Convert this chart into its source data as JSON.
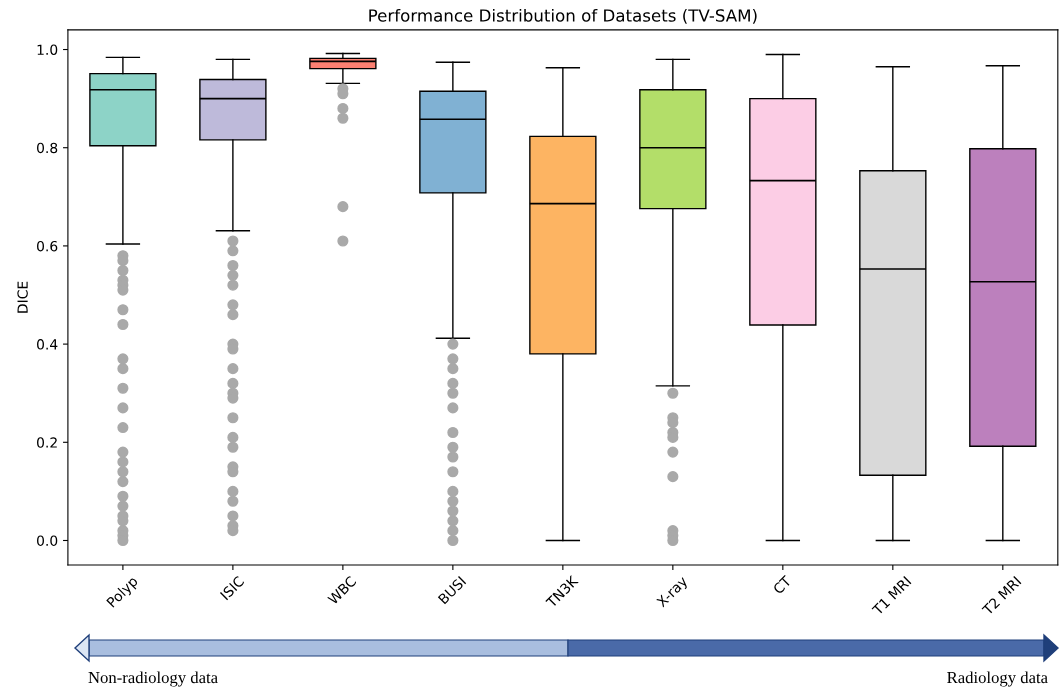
{
  "chart_data": {
    "type": "box",
    "title": "Performance Distribution of Datasets (TV-SAM)",
    "ylabel": "DICE",
    "categories": [
      "Polyp",
      "ISIC",
      "WBC",
      "BUSI",
      "TN3K",
      "X-ray",
      "CT",
      "T1 MRI",
      "T2 MRI"
    ],
    "colors": [
      "#8dd3c7",
      "#bebada",
      "#fb8072",
      "#80b1d3",
      "#fdb462",
      "#b3de69",
      "#fccde5",
      "#d9d9d9",
      "#bc80bd"
    ],
    "boxes": [
      {
        "low": 0.604,
        "q1": 0.804,
        "median": 0.918,
        "q3": 0.951,
        "high": 0.984,
        "outliers": [
          0.58,
          0.57,
          0.55,
          0.53,
          0.52,
          0.51,
          0.47,
          0.44,
          0.37,
          0.35,
          0.31,
          0.27,
          0.23,
          0.18,
          0.16,
          0.14,
          0.12,
          0.09,
          0.07,
          0.05,
          0.04,
          0.02,
          0.01,
          0.0
        ]
      },
      {
        "low": 0.631,
        "q1": 0.816,
        "median": 0.9,
        "q3": 0.939,
        "high": 0.98,
        "outliers": [
          0.61,
          0.59,
          0.56,
          0.54,
          0.52,
          0.48,
          0.46,
          0.4,
          0.39,
          0.35,
          0.32,
          0.3,
          0.29,
          0.25,
          0.21,
          0.19,
          0.15,
          0.14,
          0.1,
          0.08,
          0.05,
          0.03,
          0.02
        ]
      },
      {
        "low": 0.931,
        "q1": 0.961,
        "median": 0.976,
        "q3": 0.982,
        "high": 0.992,
        "outliers": [
          0.92,
          0.91,
          0.88,
          0.86,
          0.68,
          0.61
        ]
      },
      {
        "low": 0.412,
        "q1": 0.708,
        "median": 0.858,
        "q3": 0.915,
        "high": 0.974,
        "outliers": [
          0.4,
          0.37,
          0.35,
          0.32,
          0.3,
          0.27,
          0.22,
          0.19,
          0.17,
          0.14,
          0.1,
          0.08,
          0.06,
          0.04,
          0.02,
          0.0
        ]
      },
      {
        "low": 0.0,
        "q1": 0.38,
        "median": 0.686,
        "q3": 0.823,
        "high": 0.963
      },
      {
        "low": 0.315,
        "q1": 0.676,
        "median": 0.8,
        "q3": 0.918,
        "high": 0.98,
        "outliers": [
          0.3,
          0.25,
          0.24,
          0.22,
          0.21,
          0.18,
          0.13,
          0.02,
          0.01,
          0.0
        ]
      },
      {
        "low": 0.0,
        "q1": 0.439,
        "median": 0.733,
        "q3": 0.9,
        "high": 0.99
      },
      {
        "low": 0.0,
        "q1": 0.133,
        "median": 0.553,
        "q3": 0.753,
        "high": 0.965
      },
      {
        "low": 0.0,
        "q1": 0.192,
        "median": 0.527,
        "q3": 0.798,
        "high": 0.967
      }
    ],
    "ylim": [
      -0.05,
      1.04
    ],
    "yticks": [
      {
        "value": 0.0,
        "label": "0.0"
      },
      {
        "value": 0.2,
        "label": "0.2"
      },
      {
        "value": 0.4,
        "label": "0.4"
      },
      {
        "value": 0.6,
        "label": "0.6"
      },
      {
        "value": 0.8,
        "label": "0.8"
      },
      {
        "value": 1.0,
        "label": "1.0"
      }
    ],
    "annotations": [
      "Non-radiology data",
      "Radiology data"
    ]
  }
}
